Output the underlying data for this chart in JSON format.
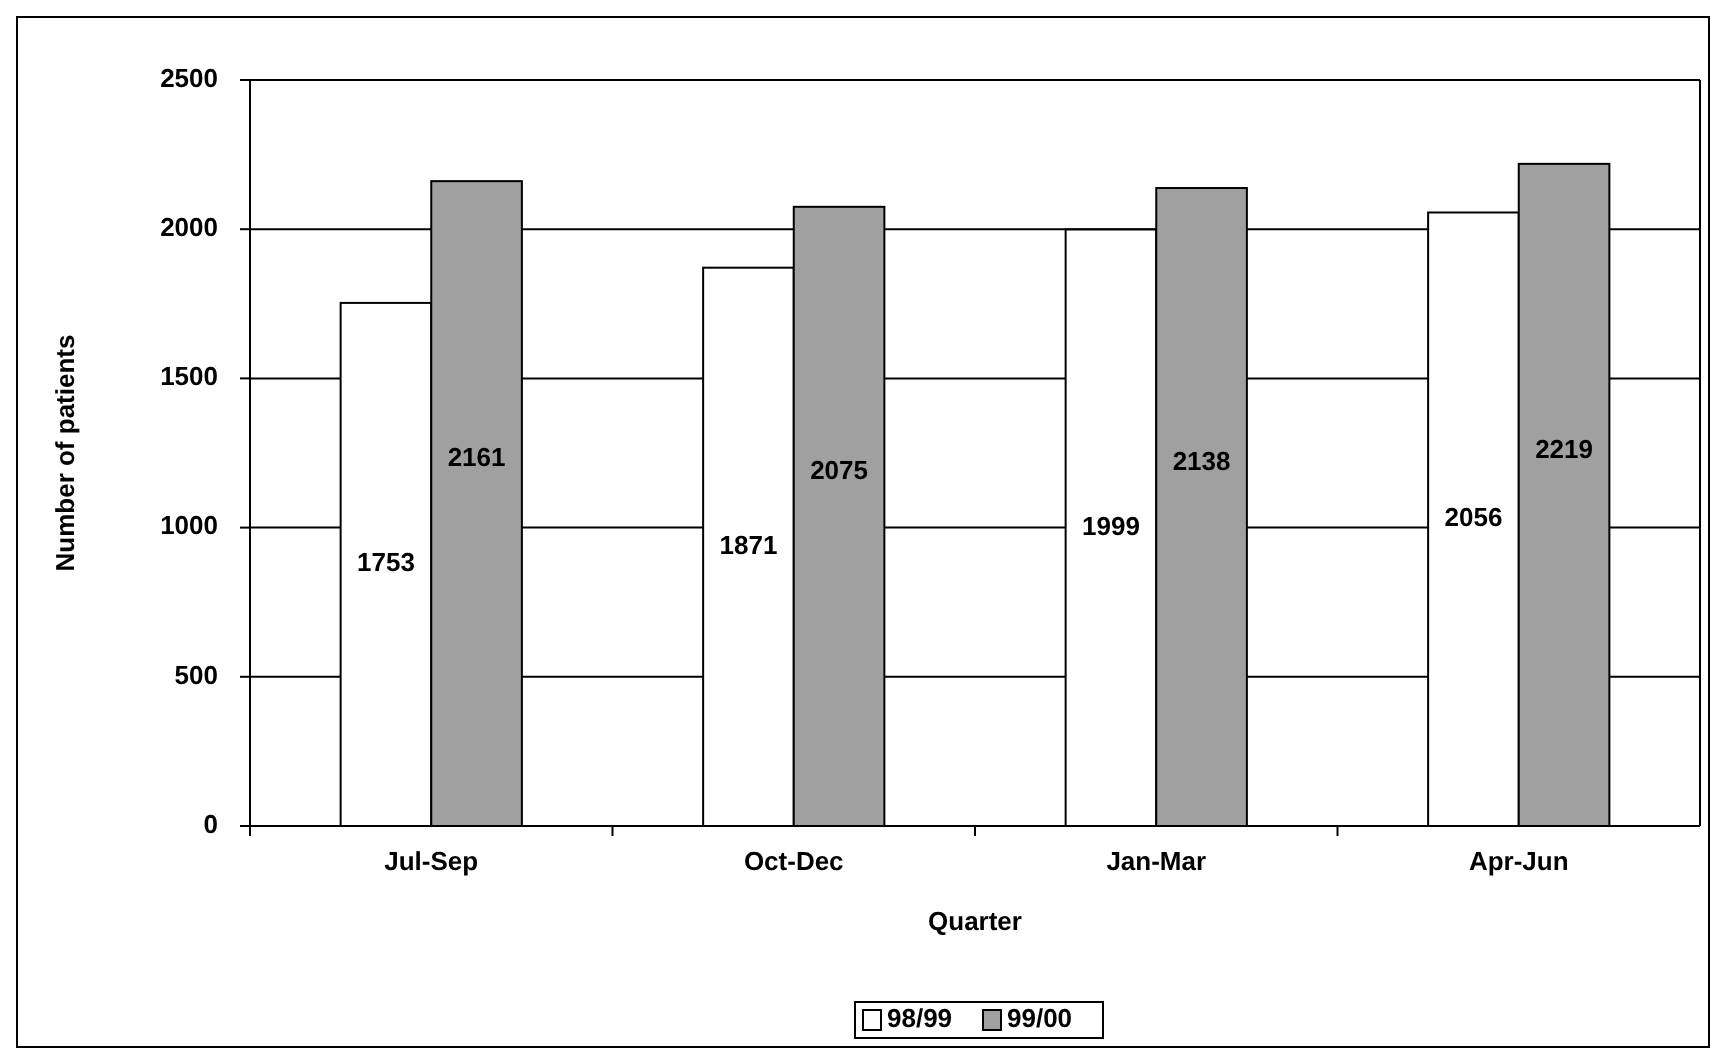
{
  "chart_data": {
    "type": "bar",
    "xlabel": "Quarter",
    "ylabel": "Number of patients",
    "categories": [
      "Jul-Sep",
      "Oct-Dec",
      "Jan-Mar",
      "Apr-Jun"
    ],
    "series": [
      {
        "name": "98/99",
        "color": "#ffffff",
        "values": [
          1753,
          1871,
          1999,
          2056
        ]
      },
      {
        "name": "99/00",
        "color": "#a0a0a0",
        "values": [
          2161,
          2075,
          2138,
          2219
        ]
      }
    ],
    "ylim": [
      0,
      2500
    ],
    "yticks": [
      0,
      500,
      1000,
      1500,
      2000,
      2500
    ],
    "grid": "y",
    "legend": "bottom",
    "data_labels": true
  }
}
